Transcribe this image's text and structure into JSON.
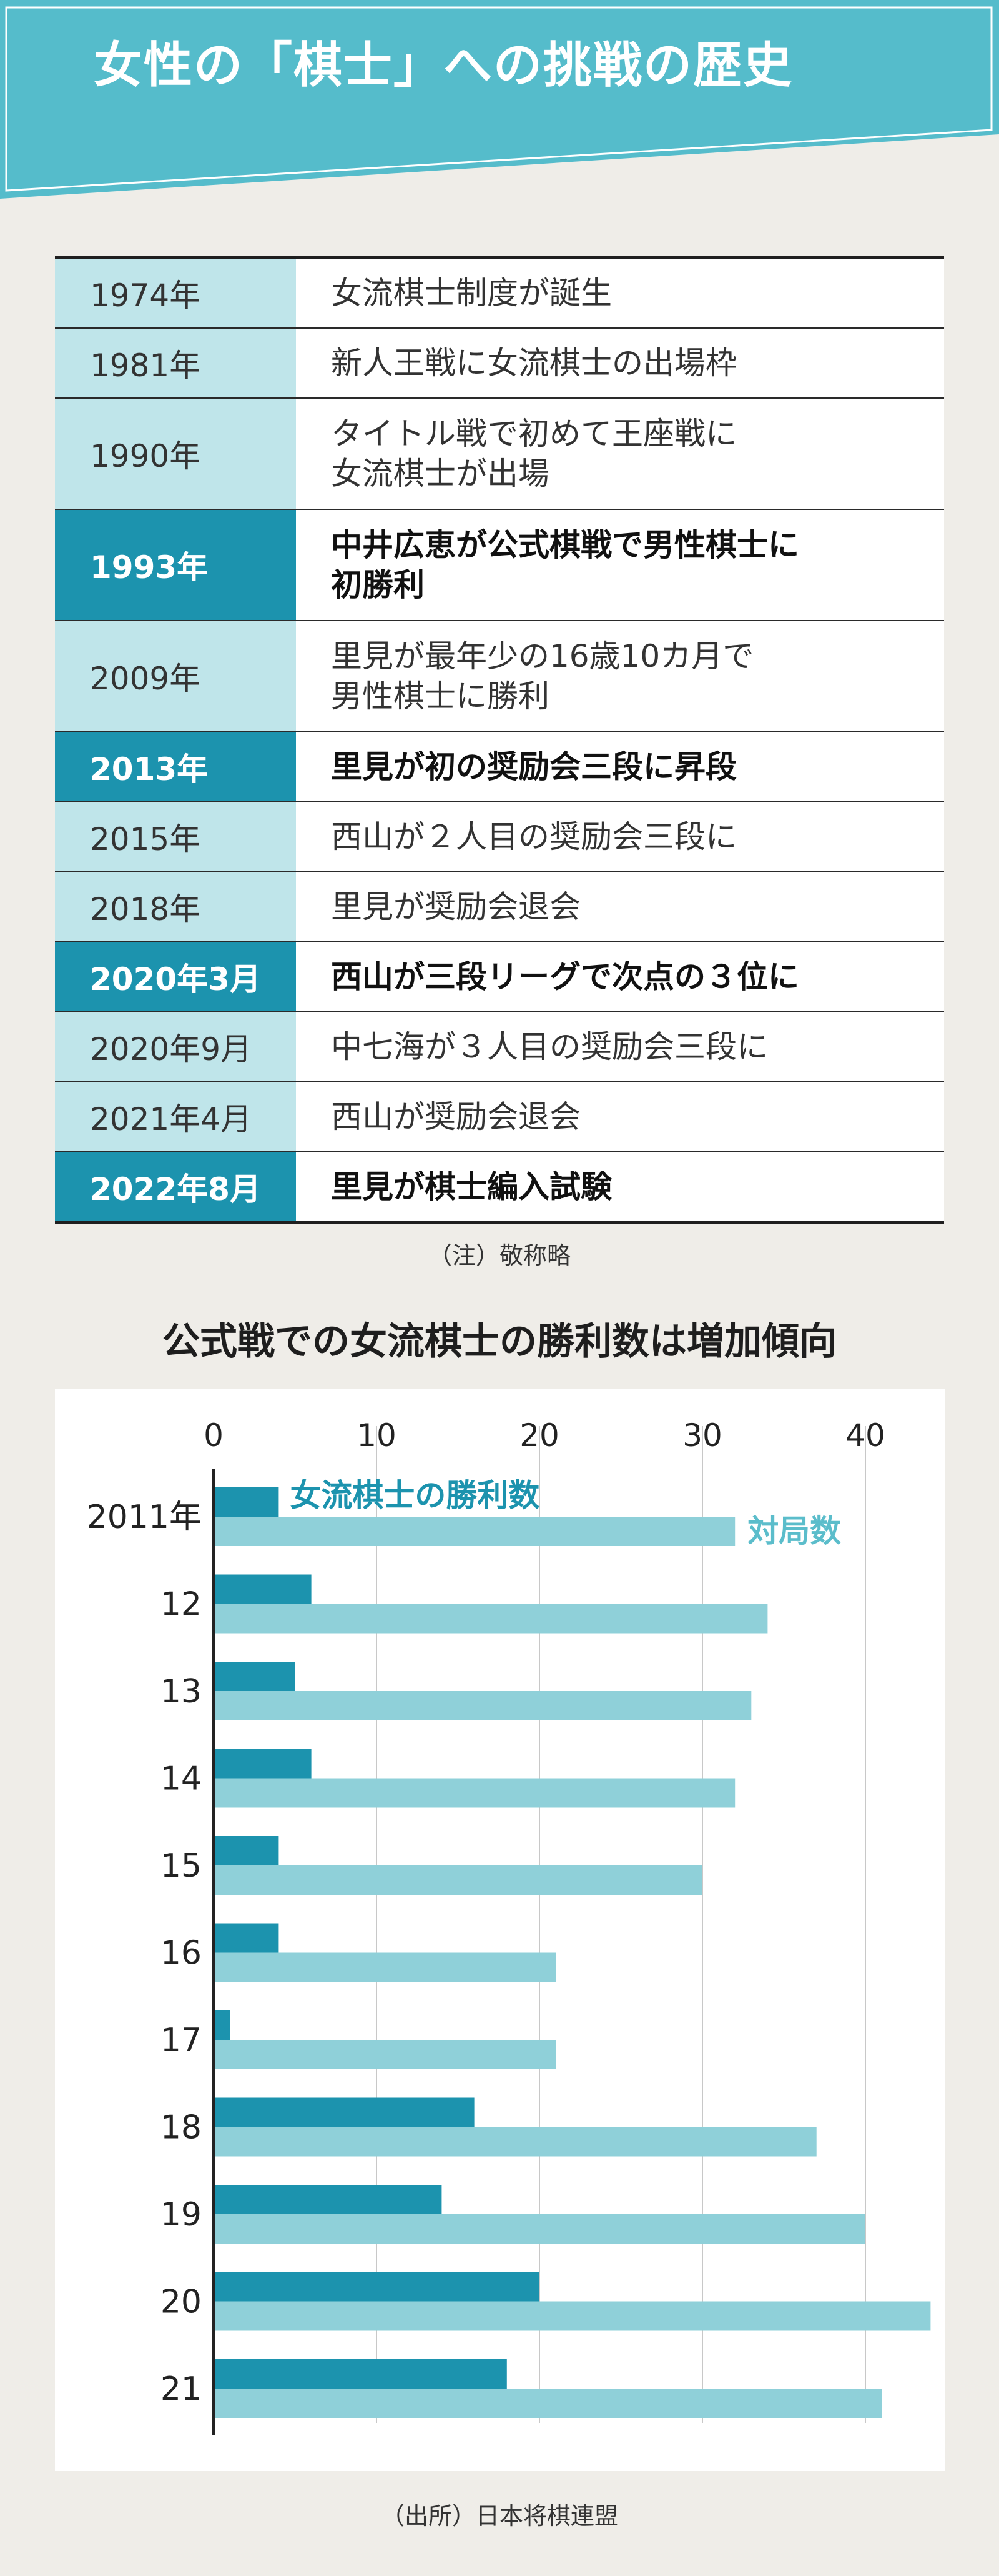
{
  "header": {
    "title": "女性の「棋士」への挑戦の歴史",
    "colors": {
      "band": "#55bccb",
      "outline": "#1f98ad"
    }
  },
  "timeline": [
    {
      "year": "1974年",
      "event": [
        "女流棋士制度が誕生"
      ],
      "highlight": false
    },
    {
      "year": "1981年",
      "event": [
        "新人王戦に女流棋士の出場枠"
      ],
      "highlight": false
    },
    {
      "year": "1990年",
      "event": [
        "タイトル戦で初めて王座戦に",
        "女流棋士が出場"
      ],
      "highlight": false
    },
    {
      "year": "1993年",
      "event": [
        "中井広恵が公式棋戦で男性棋士に",
        "初勝利"
      ],
      "highlight": true
    },
    {
      "year": "2009年",
      "event": [
        "里見が最年少の16歳10カ月で",
        "男性棋士に勝利"
      ],
      "highlight": false
    },
    {
      "year": "2013年",
      "event": [
        "里見が初の奨励会三段に昇段"
      ],
      "highlight": true
    },
    {
      "year": "2015年",
      "event": [
        "西山が２人目の奨励会三段に"
      ],
      "highlight": false
    },
    {
      "year": "2018年",
      "event": [
        "里見が奨励会退会"
      ],
      "highlight": false
    },
    {
      "year": "2020年3月",
      "event": [
        "西山が三段リーグで次点の３位に"
      ],
      "highlight": true
    },
    {
      "year": "2020年9月",
      "event": [
        "中七海が３人目の奨励会三段に"
      ],
      "highlight": false
    },
    {
      "year": "2021年4月",
      "event": [
        "西山が奨励会退会"
      ],
      "highlight": false
    },
    {
      "year": "2022年8月",
      "event": [
        "里見が棋士編入試験"
      ],
      "highlight": true
    }
  ],
  "note": "（注）敬称略",
  "chart_title": "公式戦での女流棋士の勝利数は増加傾向",
  "source": "（出所）日本将棋連盟",
  "chart_data": {
    "type": "bar",
    "orientation": "horizontal",
    "categories": [
      "2011年",
      "12",
      "13",
      "14",
      "15",
      "16",
      "17",
      "18",
      "19",
      "20",
      "21"
    ],
    "series": [
      {
        "name": "女流棋士の勝利数",
        "color": "#1c93ae",
        "values": [
          4,
          6,
          5,
          6,
          4,
          4,
          1,
          16,
          14,
          20,
          18
        ]
      },
      {
        "name": "対局数",
        "color": "#8fd0d9",
        "values": [
          32,
          34,
          33,
          32,
          30,
          21,
          21,
          37,
          40,
          44,
          41
        ]
      }
    ],
    "x_ticks": [
      0,
      10,
      20,
      30,
      40
    ],
    "xlim": [
      0,
      44
    ],
    "grid": true,
    "legend": "inline labels on first category"
  }
}
